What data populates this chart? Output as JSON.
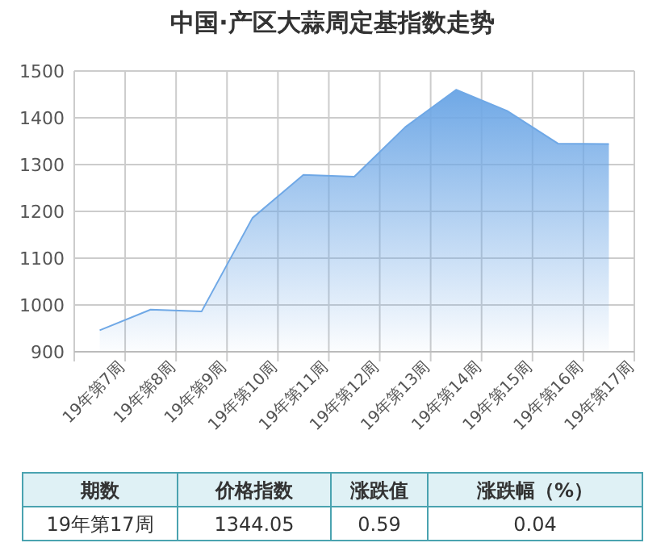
{
  "chart_data": {
    "type": "area",
    "title": "中国·产区大蒜周定基指数走势",
    "categories": [
      "19年第7周",
      "19年第8周",
      "19年第9周",
      "19年第10周",
      "19年第11周",
      "19年第12周",
      "19年第13周",
      "19年第14周",
      "19年第15周",
      "19年第16周",
      "19年第17周"
    ],
    "series": [
      {
        "color": "#6fa8e6",
        "values": [
          946,
          990,
          986,
          1186,
          1278,
          1274,
          1380,
          1460,
          1415,
          1345,
          1344
        ]
      }
    ],
    "ylim": [
      900,
      1500
    ],
    "yticks": [
      900,
      1000,
      1100,
      1200,
      1300,
      1400,
      1500
    ],
    "grid": true,
    "annotations": [
      "期数",
      "价格指数",
      "涨跌值",
      "涨跌幅（%）",
      "19年第17周",
      "1344.05",
      "0.59",
      "0.04"
    ]
  }
}
